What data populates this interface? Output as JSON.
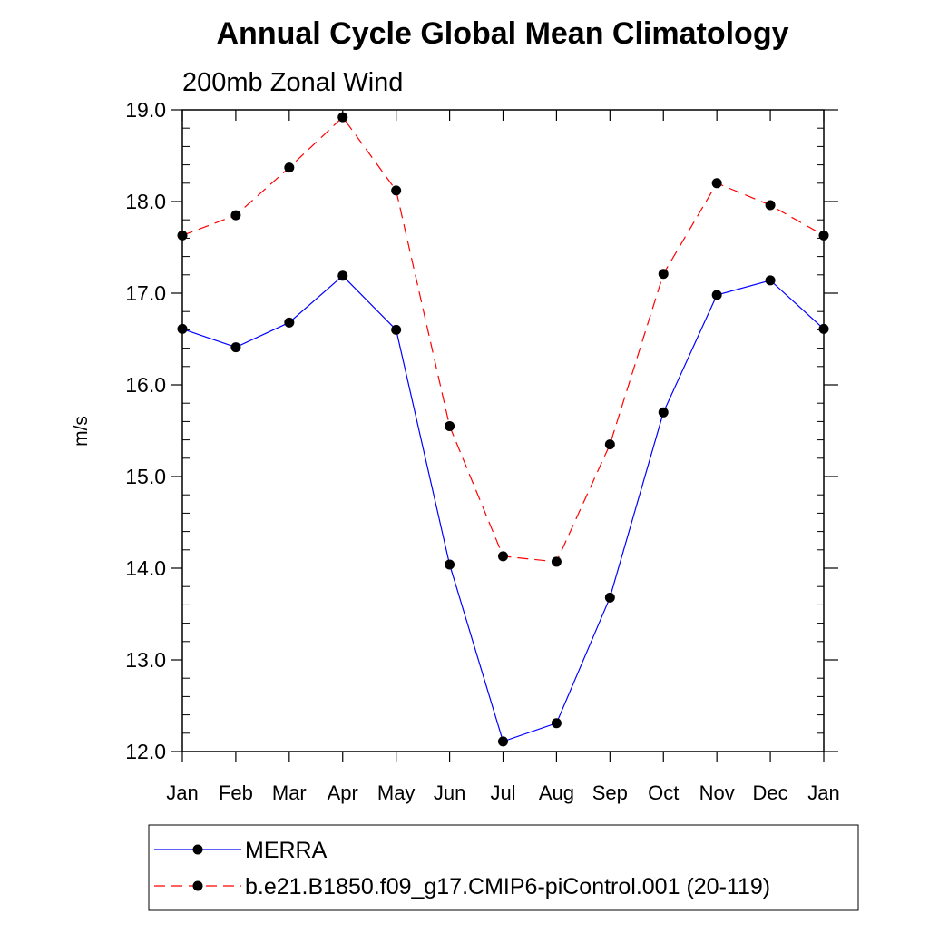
{
  "chart_data": {
    "type": "line",
    "title": "Annual Cycle Global Mean Climatology",
    "subtitle": "200mb Zonal Wind",
    "ylabel": "m/s",
    "xlabel": "",
    "categories": [
      "Jan",
      "Feb",
      "Mar",
      "Apr",
      "May",
      "Jun",
      "Jul",
      "Aug",
      "Sep",
      "Oct",
      "Nov",
      "Dec",
      "Jan"
    ],
    "ylim": [
      12.0,
      19.0
    ],
    "yticks": [
      "12.0",
      "13.0",
      "14.0",
      "15.0",
      "16.0",
      "17.0",
      "18.0",
      "19.0"
    ],
    "grid": false,
    "legend_position": "bottom",
    "series": [
      {
        "name": "MERRA",
        "color": "#0000ff",
        "line_style": "solid",
        "marker": "filled-circle",
        "values": [
          16.61,
          16.41,
          16.68,
          17.19,
          16.6,
          14.04,
          12.11,
          12.31,
          13.68,
          15.7,
          16.98,
          17.14,
          16.61
        ]
      },
      {
        "name": "b.e21.B1850.f09_g17.CMIP6-piControl.001 (20-119)",
        "color": "#ff0000",
        "line_style": "dashed",
        "marker": "filled-circle",
        "values": [
          17.63,
          17.85,
          18.37,
          18.92,
          18.12,
          15.55,
          14.13,
          14.07,
          15.35,
          17.21,
          18.2,
          17.96,
          17.63
        ]
      }
    ]
  }
}
